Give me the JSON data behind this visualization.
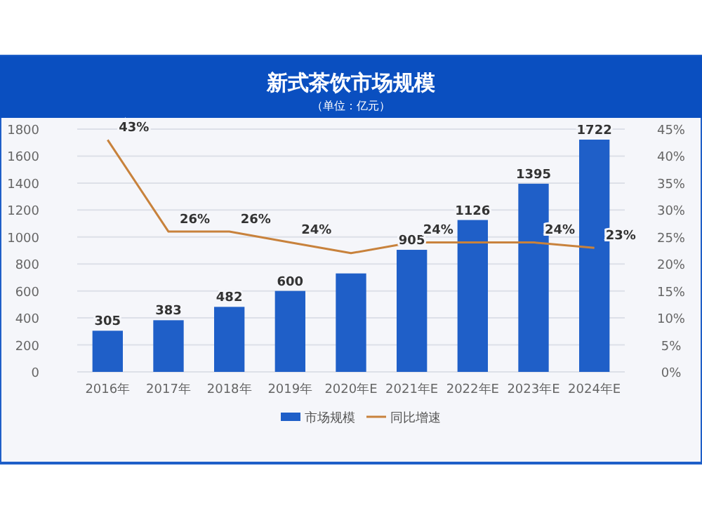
{
  "chart_data": {
    "type": "bar",
    "title": "新式茶饮市场规模",
    "subtitle": "（单位：亿元）",
    "categories": [
      "2016年",
      "2017年",
      "2018年",
      "2019年",
      "2020年E",
      "2021年E",
      "2022年E",
      "2023年E",
      "2024年E"
    ],
    "series": [
      {
        "name": "市场规模",
        "color": "#1f5fc8",
        "values": [
          305,
          383,
          482,
          600,
          730,
          905,
          1126,
          1395,
          1722
        ],
        "value_labels": [
          "305",
          "383",
          "482",
          "600",
          null,
          "905",
          "1126",
          "1395",
          "1722"
        ]
      },
      {
        "name": "同比增速",
        "type": "line",
        "axis": "y2",
        "color": "#c8823c",
        "values": [
          43,
          26,
          26,
          24,
          22,
          24,
          24,
          24,
          23
        ],
        "value_labels": [
          "43%",
          "26%",
          "26%",
          "24%",
          null,
          "24%",
          null,
          "24%",
          "23%"
        ]
      }
    ],
    "ylim": [
      0,
      1800
    ],
    "yticks": [
      0,
      200,
      400,
      600,
      800,
      1000,
      1200,
      1400,
      1600,
      1800
    ],
    "y2lim": [
      0,
      45
    ],
    "y2ticks": [
      {
        "value": 0,
        "label": "0%"
      },
      {
        "value": 5,
        "label": "5%"
      },
      {
        "value": 10,
        "label": "10%"
      },
      {
        "value": 15,
        "label": "15%"
      },
      {
        "value": 20,
        "label": "20%"
      },
      {
        "value": 25,
        "label": "25%"
      },
      {
        "value": 30,
        "label": "30%"
      },
      {
        "value": 35,
        "label": "35%"
      },
      {
        "value": 40,
        "label": "40%"
      },
      {
        "value": 45,
        "label": "45%"
      }
    ],
    "grid": "y",
    "legend": "bottom"
  }
}
